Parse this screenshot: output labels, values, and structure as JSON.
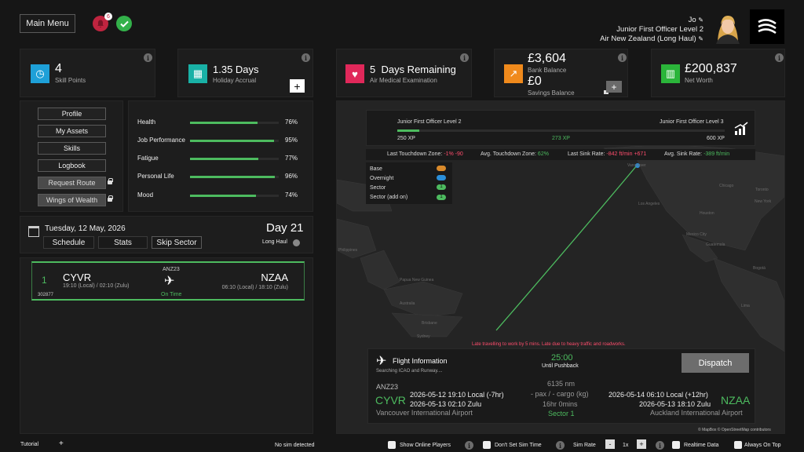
{
  "header": {
    "main_menu": "Main Menu",
    "notification_count": "6",
    "user_name": "Jo",
    "rank": "Junior First Officer Level 2",
    "airline": "Air New Zealand (Long Haul)"
  },
  "stats": {
    "skill_points_value": "4",
    "skill_points_label": "Skill Points",
    "holiday_value": "1.35 Days",
    "holiday_label": "Holiday Accrual",
    "medical_value": "5  Days Remaining",
    "medical_label": "Air Medical Examination",
    "bank_value": "£3,604",
    "bank_label": "Bank Balance",
    "savings_value": "£0",
    "savings_label": "Savings Balance",
    "networth_value": "£200,837",
    "networth_label": "Net Worth"
  },
  "menu": {
    "profile": "Profile",
    "my_assets": "My Assets",
    "skills": "Skills",
    "logbook": "Logbook",
    "request_route": "Request Route",
    "wings_of_wealth": "Wings of Wealth"
  },
  "wellbeing": [
    {
      "label": "Health",
      "value": 76,
      "pct": "76%"
    },
    {
      "label": "Job Performance",
      "value": 95,
      "pct": "95%"
    },
    {
      "label": "Fatigue",
      "value": 77,
      "pct": "77%"
    },
    {
      "label": "Personal Life",
      "value": 96,
      "pct": "96%"
    },
    {
      "label": "Mood",
      "value": 74,
      "pct": "74%"
    }
  ],
  "schedule": {
    "date": "Tuesday, 12 May, 2026",
    "day": "Day 21",
    "schedule_btn": "Schedule",
    "stats_btn": "Stats",
    "skip_btn": "Skip Sector",
    "haul": "Long Haul"
  },
  "sector": {
    "number": "1",
    "id": "302877",
    "origin": "CYVR",
    "origin_times": "19:10 (Local) / 02:10 (Zulu)",
    "flight": "ANZ23",
    "status": "On Time",
    "dest": "NZAA",
    "dest_times": "06:10 (Local) / 18:10 (Zulu)"
  },
  "progress": {
    "current": "Junior First Officer Level 2",
    "next": "Junior First Officer Level 3",
    "xp_start": "250 XP",
    "xp_current": "273 XP",
    "xp_end": "600 XP",
    "xp_fraction": 0.066
  },
  "landing": {
    "touchdown_label": "Last Touchdown Zone:",
    "touchdown_a": "-1%",
    "touchdown_b": "-90",
    "avg_touchdown_label": "Avg. Touchdown Zone:",
    "avg_touchdown": "62%",
    "sink_label": "Last Sink Rate:",
    "sink_a": "-842 ft/min",
    "sink_b": "+671",
    "avg_sink_label": "Avg. Sink Rate:",
    "avg_sink": "-389 ft/min"
  },
  "legend": {
    "base": "Base",
    "overnight": "Overnight",
    "sector": "Sector",
    "sector_addon": "Sector (add on)",
    "sector_count": "1",
    "addon_count": "1",
    "base_color": "#d98a2b",
    "overnight_color": "#2b8fd9",
    "sector_color": "#4dbb5f"
  },
  "map_labels": {
    "vancouver": "Vancouver",
    "los_angeles": "Los Angeles",
    "chicago": "Chicago",
    "toronto": "Toronto",
    "new_york": "New York",
    "houston": "Houston",
    "mexico_city": "Mexico City",
    "guatemala": "Guatemala",
    "bogota": "Bogotá",
    "lima": "Lima",
    "philippines": "Philippines",
    "papua": "Papua New Guinea",
    "australia": "Australia",
    "brisbane": "Brisbane",
    "sydney": "Sydney",
    "attribution": "© MapBox © OpenStreetMap contributors"
  },
  "flight_info": {
    "late_notice": "Late travelling to work by 5 mins. Late due to heavy traffic and roadworks.",
    "title": "Flight Information",
    "searching": "Searching ICAO and Runway....",
    "countdown": "25:00",
    "until": "Until Pushback",
    "dispatch": "Dispatch",
    "flight": "ANZ23",
    "origin": "CYVR",
    "dep_local": "2026-05-12 19:10 Local (-7hr)",
    "dep_zulu": "2026-05-13 02:10 Zulu",
    "origin_name": "Vancouver International Airport",
    "distance": "6135 nm",
    "load": "- pax / - cargo (kg)",
    "duration": "16hr 0mins",
    "sector": "Sector 1",
    "arr_local": "2026-05-14 06:10 Local (+12hr)",
    "arr_zulu": "2026-05-13 18:10 Zulu",
    "dest": "NZAA",
    "dest_name": "Auckland International Airport"
  },
  "footer": {
    "tutorial": "Tutorial",
    "plus": "+",
    "sim_status": "No sim detected",
    "show_online": "Show Online Players",
    "dont_set_time": "Don't Set Sim Time",
    "sim_rate": "Sim Rate",
    "rate_minus": "-",
    "rate_value": "1x",
    "rate_plus": "+",
    "realtime": "Realtime Data",
    "always_top": "Always On Top"
  },
  "colors": {
    "green": "#4dbb5f",
    "red": "#ff4d6d",
    "skill_icon": "#1ea0d8",
    "holiday_icon": "#19b1a6",
    "medical_icon": "#e0285a",
    "bank_icon": "#f08a1c",
    "networth_icon": "#2bb53a"
  }
}
